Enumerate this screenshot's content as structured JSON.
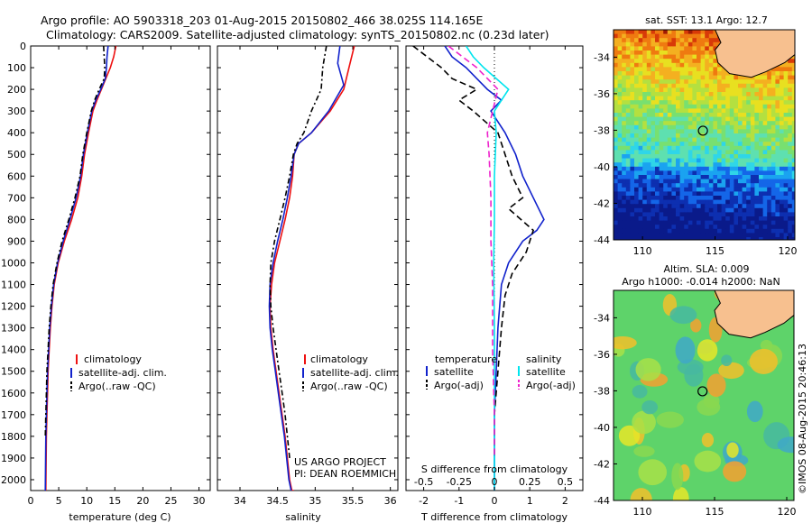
{
  "header": {
    "line1": "Argo profile: AO 5903318_203 01-Aug-2015 20150802_466 38.025S 114.165E",
    "line2": "Climatology: CARS2009. Satellite-adjusted climatology: synTS_20150802.nc (0.23d later)"
  },
  "colors": {
    "climatology": "#ee1111",
    "satellite": "#1122cc",
    "argo": "#000000",
    "sal_satellite": "#00e5ee",
    "sal_argo": "#ee22cc",
    "land": "#f7c08f"
  },
  "chart_data": [
    {
      "type": "line",
      "name_id": "temperature-profile",
      "xlabel": "temperature (deg C)",
      "xlim": [
        0,
        32
      ],
      "ylim": [
        2050,
        0
      ],
      "xticks": [
        0,
        5,
        10,
        15,
        20,
        25,
        30
      ],
      "yticks": [
        0,
        100,
        200,
        300,
        400,
        500,
        600,
        700,
        800,
        900,
        1000,
        1100,
        1200,
        1300,
        1400,
        1500,
        1600,
        1700,
        1800,
        1900,
        2000
      ],
      "series": [
        {
          "key": "climatology",
          "color": "#ee1111",
          "dash": "",
          "x": [
            15.2,
            14.8,
            14.2,
            13.4,
            12.6,
            11.8,
            11.1,
            10.3,
            9.6,
            9.1,
            8.4,
            7.3,
            6.0,
            4.9,
            4.2,
            3.8,
            3.5,
            3.3,
            3.1,
            3.0,
            2.9,
            2.8,
            2.7
          ],
          "y": [
            0,
            50,
            100,
            150,
            200,
            250,
            300,
            400,
            500,
            600,
            700,
            800,
            900,
            1000,
            1100,
            1200,
            1300,
            1400,
            1500,
            1600,
            1700,
            1800,
            2050
          ]
        },
        {
          "key": "satellite",
          "color": "#1122cc",
          "dash": "",
          "x": [
            13.8,
            13.6,
            13.5,
            13.3,
            12.5,
            11.6,
            10.9,
            10.1,
            9.4,
            8.9,
            8.1,
            7.0,
            5.8,
            4.8,
            4.1,
            3.7,
            3.4,
            3.2,
            3.0,
            2.9,
            2.8,
            2.7,
            2.6
          ],
          "y": [
            0,
            50,
            100,
            150,
            200,
            250,
            300,
            400,
            500,
            600,
            700,
            800,
            900,
            1000,
            1100,
            1200,
            1300,
            1400,
            1500,
            1600,
            1700,
            1800,
            2050
          ]
        },
        {
          "key": "argo",
          "color": "#000000",
          "dash": "6,3,2,3",
          "x": [
            13.0,
            13.1,
            13.2,
            13.1,
            12.2,
            11.4,
            10.8,
            10.0,
            9.3,
            8.8,
            7.9,
            6.8,
            5.6,
            4.7,
            4.0,
            3.6,
            3.3,
            3.1,
            2.9,
            2.8,
            2.7,
            2.6
          ],
          "y": [
            0,
            50,
            100,
            150,
            200,
            250,
            300,
            400,
            500,
            600,
            700,
            800,
            900,
            1000,
            1100,
            1200,
            1300,
            1400,
            1500,
            1600,
            1700,
            1800
          ]
        }
      ],
      "legend": [
        "climatology",
        "satellite-adj. clim.",
        "Argo(..raw -QC)"
      ]
    },
    {
      "type": "line",
      "name_id": "salinity-profile",
      "xlabel": "salinity",
      "xlim": [
        33.7,
        36.1
      ],
      "ylim": [
        2050,
        0
      ],
      "xticks": [
        34,
        34.5,
        35,
        35.5,
        36
      ],
      "series": [
        {
          "key": "climatology",
          "color": "#ee1111",
          "dash": "",
          "x": [
            35.52,
            35.45,
            35.38,
            35.2,
            34.95,
            34.78,
            34.72,
            34.7,
            34.66,
            34.6,
            34.53,
            34.46,
            34.42,
            34.4,
            34.41,
            34.44,
            34.48,
            34.52,
            34.56,
            34.6,
            34.63,
            34.66,
            34.69,
            34.72
          ],
          "y": [
            0,
            100,
            200,
            300,
            400,
            450,
            500,
            600,
            700,
            800,
            900,
            1000,
            1100,
            1200,
            1300,
            1400,
            1500,
            1600,
            1700,
            1800,
            1900,
            2000,
            2050,
            2050
          ]
        },
        {
          "key": "satellite",
          "color": "#1122cc",
          "dash": "",
          "x": [
            35.33,
            35.3,
            35.38,
            35.18,
            34.95,
            34.78,
            34.72,
            34.68,
            34.63,
            34.57,
            34.5,
            34.44,
            34.4,
            34.39,
            34.4,
            34.43,
            34.47,
            34.51,
            34.55,
            34.59,
            34.62,
            34.65,
            34.68
          ],
          "y": [
            0,
            80,
            180,
            300,
            400,
            450,
            500,
            600,
            700,
            800,
            900,
            1000,
            1100,
            1200,
            1300,
            1400,
            1500,
            1600,
            1700,
            1800,
            1900,
            2000,
            2050
          ]
        },
        {
          "key": "argo",
          "color": "#000000",
          "dash": "6,3,2,3",
          "x": [
            35.15,
            35.1,
            35.08,
            34.95,
            34.85,
            34.76,
            34.71,
            34.66,
            34.6,
            34.53,
            34.46,
            34.41,
            34.4,
            34.41,
            34.44,
            34.48,
            34.52,
            34.56,
            34.6,
            34.63,
            34.66
          ],
          "y": [
            0,
            100,
            200,
            300,
            400,
            450,
            500,
            600,
            700,
            800,
            900,
            1000,
            1100,
            1200,
            1300,
            1400,
            1500,
            1600,
            1700,
            1800,
            1900
          ]
        }
      ],
      "legend": [
        "climatology",
        "satellite-adj. clim.",
        "Argo(..raw -QC)"
      ],
      "credit1": "US ARGO PROJECT",
      "credit2": "PI: DEAN ROEMMICH"
    },
    {
      "type": "line",
      "name_id": "difference-profile",
      "xlabel": "T difference from climatology",
      "xlabel_top": "S difference from climatology",
      "xlim": [
        -2.5,
        2.5
      ],
      "ylim": [
        2050,
        0
      ],
      "xticks": [
        -2,
        -1,
        0,
        1,
        2
      ],
      "xticks_top": [
        -0.5,
        -0.25,
        0,
        0.25,
        0.5
      ],
      "series": [
        {
          "key": "t_satellite",
          "color": "#1122cc",
          "dash": "",
          "x": [
            -1.4,
            -1.2,
            -0.8,
            -0.5,
            -0.2,
            0.2,
            -0.1,
            0.3,
            0.6,
            0.8,
            1.1,
            1.4,
            1.2,
            0.8,
            0.4,
            0.2,
            0.1,
            0.05,
            0.0,
            0.0,
            0.0
          ],
          "y": [
            0,
            50,
            100,
            150,
            200,
            250,
            300,
            400,
            500,
            600,
            700,
            800,
            850,
            900,
            1000,
            1100,
            1300,
            1500,
            1700,
            1900,
            2050
          ]
        },
        {
          "key": "t_argo",
          "color": "#000000",
          "dash": "7,4",
          "x": [
            -2.3,
            -1.9,
            -1.5,
            -1.2,
            -0.5,
            -1.0,
            -0.6,
            0.1,
            0.3,
            0.5,
            0.8,
            0.4,
            1.1,
            0.9,
            0.5,
            0.3,
            0.2,
            0.1,
            0.0,
            0.0
          ],
          "y": [
            0,
            50,
            100,
            150,
            200,
            250,
            300,
            400,
            500,
            600,
            700,
            750,
            850,
            950,
            1050,
            1150,
            1300,
            1500,
            1700,
            1900
          ]
        },
        {
          "key": "s_satellite",
          "color": "#00e5ee",
          "dash": "",
          "x": [
            -0.8,
            -0.6,
            -0.3,
            0.4,
            0.0,
            0.05,
            0.0,
            0.0,
            -0.02,
            0.0,
            0.0,
            0.0
          ],
          "y": [
            0,
            50,
            100,
            200,
            300,
            400,
            600,
            800,
            1000,
            1300,
            1700,
            2050
          ]
        },
        {
          "key": "s_argo",
          "color": "#ee22cc",
          "dash": "7,4",
          "x": [
            -1.3,
            -0.9,
            -0.5,
            0.1,
            -0.2,
            -0.15,
            -0.1,
            -0.1,
            -0.05,
            -0.05,
            0.0,
            0.0
          ],
          "y": [
            0,
            50,
            100,
            200,
            400,
            500,
            700,
            900,
            1100,
            1400,
            1700,
            1900
          ]
        }
      ],
      "legend_t_title": "temperature",
      "legend_s_title": "salinity",
      "legend_t": [
        "satellite",
        "Argo(-adj)"
      ],
      "legend_s": [
        "satellite",
        "Argo(-adj)"
      ]
    },
    {
      "type": "heatmap",
      "name_id": "sst-map",
      "title": "sat. SST: 13.1  Argo: 12.7",
      "xlim": [
        108,
        120.5
      ],
      "ylim": [
        -44,
        -32.5
      ],
      "xticks": [
        110,
        115,
        120
      ],
      "yticks": [
        -34,
        -36,
        -38,
        -40,
        -42,
        -44
      ],
      "marker": {
        "lon": 114.165,
        "lat": -38.025
      }
    },
    {
      "type": "heatmap",
      "name_id": "sla-map",
      "title": "Altim. SLA: 0.009",
      "subtitle": "Argo h1000: -0.014  h2000: NaN",
      "xlim": [
        108,
        120.5
      ],
      "ylim": [
        -44,
        -32.5
      ],
      "xticks": [
        110,
        115,
        120
      ],
      "yticks": [
        -34,
        -36,
        -38,
        -40,
        -42,
        -44
      ],
      "marker": {
        "lon": 114.165,
        "lat": -38.025
      }
    }
  ],
  "side_note": "©IMOS 08-Aug-2015 20:46:13"
}
